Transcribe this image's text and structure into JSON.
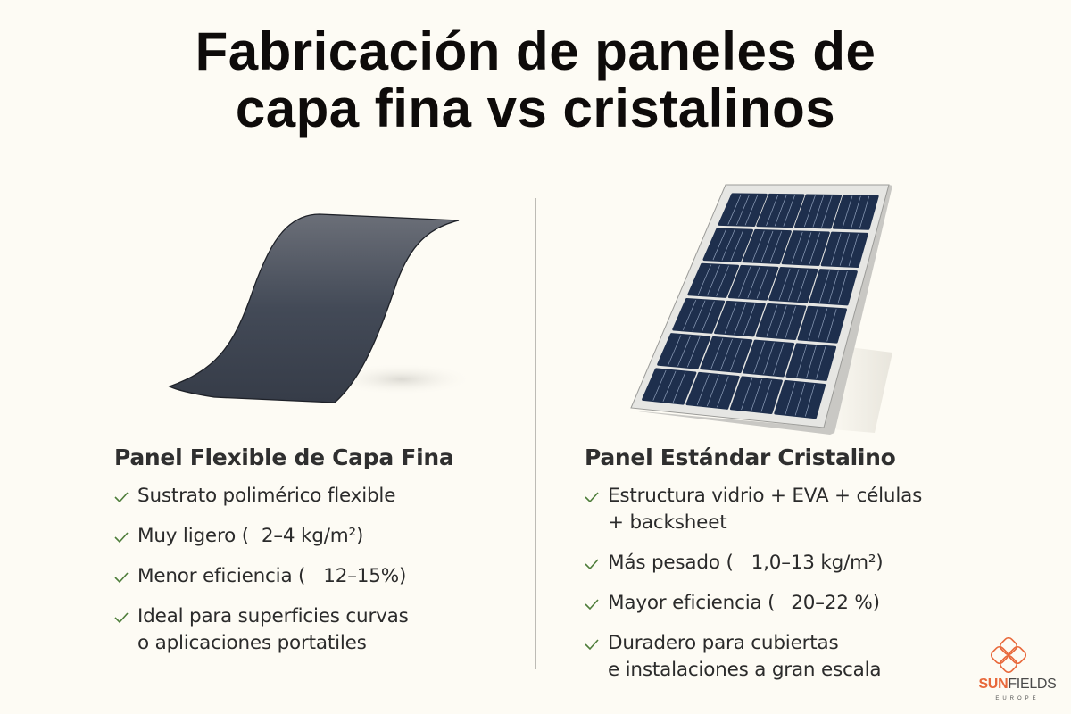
{
  "title": {
    "line1": "Fabricación de paneles de",
    "line2": "capa fina vs cristalinos"
  },
  "colors": {
    "background": "#fdfbf4",
    "title": "#0e0b0a",
    "check": "#4e7d3a",
    "panel_cell": "#1e2f4d",
    "panel_frame": "#e4e4e2",
    "thin_film": "#3f4551",
    "brand_orange": "#e8683a"
  },
  "left": {
    "illustration": "flexible-thin-film-panel",
    "heading": "Panel Flexible de Capa Fina",
    "items": [
      {
        "icon": "check-icon",
        "lines": [
          "Sustrato polimérico flexible"
        ]
      },
      {
        "icon": "check-icon",
        "prefix": "Muy ligero (",
        "value": "2–4 kg/m²)"
      },
      {
        "icon": "check-icon",
        "prefix": "Menor eficiencia (",
        "value": "12–15%)"
      },
      {
        "icon": "check-icon",
        "lines": [
          "Ideal para superficies curvas",
          "o aplicaciones portatiles"
        ]
      }
    ]
  },
  "right": {
    "illustration": "crystalline-solar-panel",
    "heading": "Panel Estándar Cristalino",
    "items": [
      {
        "icon": "check-icon",
        "lines": [
          "Estructura vidrio + EVA + células",
          "+ backsheet"
        ]
      },
      {
        "icon": "check-icon",
        "prefix": "Más pesado (",
        "value": "1,0–13 kg/m²)"
      },
      {
        "icon": "check-icon",
        "prefix": "Mayor eficiencia (",
        "value": "20–22 %)"
      },
      {
        "icon": "check-icon",
        "lines": [
          "Duradero para cubiertas",
          "e instalaciones a gran escala"
        ]
      }
    ]
  },
  "logo": {
    "brand_sun": "SUN",
    "brand_fields": "FIELDS",
    "sub": "EUROPE"
  }
}
